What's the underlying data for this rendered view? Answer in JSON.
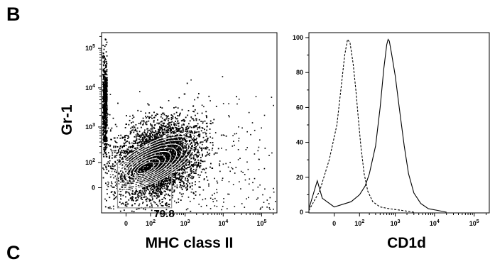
{
  "figure": {
    "panel_label": "B",
    "next_panel_label": "C"
  },
  "chart_data": [
    {
      "type": "scatter",
      "subtype": "flow-cytometry-dot-contour-plot",
      "title": "",
      "xlabel": "MHC class II",
      "ylabel": "Gr-1",
      "x_scale": "biexponential",
      "y_scale": "biexponential",
      "x_ticks": [
        "0",
        "10^2",
        "10^3",
        "10^4",
        "10^5"
      ],
      "y_ticks": [
        "0",
        "10^2",
        "10^3",
        "10^4",
        "10^5"
      ],
      "xlim": [
        -100,
        250000
      ],
      "ylim": [
        -100,
        250000
      ],
      "gate": {
        "x_range": [
          -20,
          150
        ],
        "y_range": [
          -20,
          150
        ],
        "percent": "79.8"
      },
      "population_center": {
        "x": 60,
        "y": 60
      },
      "contours": true,
      "grid": false,
      "legend": "none"
    },
    {
      "type": "line",
      "subtype": "histogram-overlay",
      "title": "",
      "xlabel": "CD1d",
      "ylabel": "",
      "x_scale": "biexponential",
      "x_ticks": [
        "0",
        "10^2",
        "10^3",
        "10^4",
        "10^5"
      ],
      "y_ticks": [
        "0",
        "20",
        "40",
        "60",
        "80",
        "100"
      ],
      "xlim": [
        -100,
        250000
      ],
      "ylim": [
        0,
        100
      ],
      "series": [
        {
          "style": "dashed",
          "points": [
            [
              -100,
              1
            ],
            [
              -40,
              12
            ],
            [
              -10,
              30
            ],
            [
              5,
              50
            ],
            [
              15,
              72
            ],
            [
              25,
              90
            ],
            [
              35,
              99
            ],
            [
              45,
              97
            ],
            [
              60,
              85
            ],
            [
              75,
              70
            ],
            [
              90,
              55
            ],
            [
              110,
              38
            ],
            [
              140,
              22
            ],
            [
              180,
              12
            ],
            [
              250,
              6
            ],
            [
              400,
              3
            ],
            [
              700,
              2
            ],
            [
              1500,
              1
            ],
            [
              3000,
              0
            ]
          ]
        },
        {
          "style": "solid",
          "points": [
            [
              -100,
              2
            ],
            [
              -50,
              18
            ],
            [
              -30,
              8
            ],
            [
              0,
              3
            ],
            [
              50,
              6
            ],
            [
              100,
              10
            ],
            [
              150,
              15
            ],
            [
              200,
              22
            ],
            [
              300,
              38
            ],
            [
              400,
              60
            ],
            [
              500,
              82
            ],
            [
              600,
              96
            ],
            [
              650,
              99
            ],
            [
              700,
              98
            ],
            [
              800,
              91
            ],
            [
              1000,
              78
            ],
            [
              1300,
              58
            ],
            [
              1700,
              38
            ],
            [
              2200,
              22
            ],
            [
              3000,
              11
            ],
            [
              4500,
              5
            ],
            [
              7000,
              2
            ],
            [
              12000,
              1
            ],
            [
              20000,
              0
            ]
          ]
        }
      ],
      "grid": false,
      "legend": "none"
    }
  ]
}
